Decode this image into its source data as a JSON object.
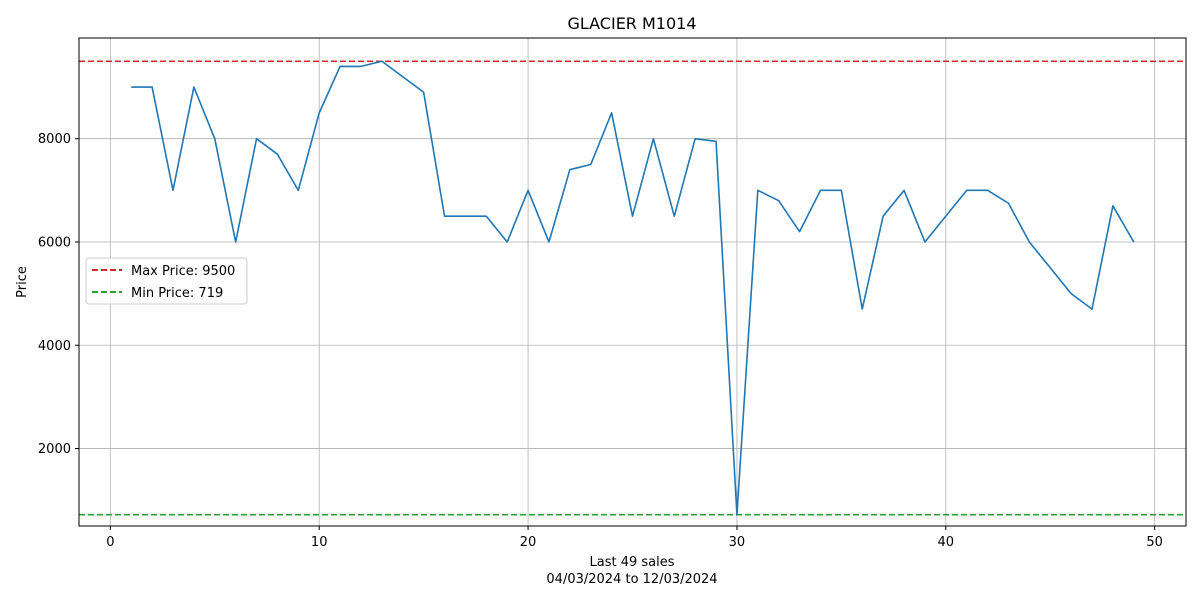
{
  "chart_data": {
    "type": "line",
    "title": "GLACIER M1014",
    "xlabel": "Last 49 sales",
    "xlabel_sub": "04/03/2024 to 12/03/2024",
    "ylabel": "Price",
    "xlim": [
      -1.5,
      51.5
    ],
    "ylim": [
      500,
      9950
    ],
    "xticks": [
      0,
      10,
      20,
      30,
      40,
      50
    ],
    "yticks": [
      2000,
      4000,
      6000,
      8000
    ],
    "grid": true,
    "legend_position": "center-left",
    "colors": {
      "series": "#1f77b4",
      "max_line": "#d62728",
      "min_line": "#2ca02c",
      "grid": "#b0b0b0",
      "axes": "#000000"
    },
    "reference_lines": [
      {
        "label": "Max Price: 9500",
        "value": 9500,
        "color": "#d62728"
      },
      {
        "label": "Min Price: 719",
        "value": 719,
        "color": "#2ca02c"
      }
    ],
    "series": [
      {
        "x": [
          1,
          2,
          3,
          4,
          5,
          6,
          7,
          8,
          9,
          10,
          11,
          12,
          13,
          14,
          15,
          16,
          17,
          18,
          19,
          20,
          21,
          22,
          23,
          24,
          25,
          26,
          27,
          28,
          29,
          30,
          31,
          32,
          33,
          34,
          35,
          36,
          37,
          38,
          39,
          40,
          41,
          42,
          43,
          44,
          45,
          46,
          47,
          48,
          49
        ],
        "values": [
          9000,
          9000,
          7000,
          9000,
          8000,
          6000,
          8000,
          7700,
          7000,
          8500,
          9400,
          9400,
          9500,
          9200,
          8900,
          6500,
          6500,
          6500,
          6000,
          7000,
          6000,
          7400,
          7500,
          8500,
          6500,
          8000,
          6500,
          8000,
          7950,
          719,
          7000,
          6800,
          6200,
          7000,
          7000,
          4700,
          6500,
          7000,
          6000,
          6500,
          7000,
          7000,
          6750,
          6000,
          5500,
          5000,
          4700,
          6700,
          6000
        ]
      }
    ]
  }
}
